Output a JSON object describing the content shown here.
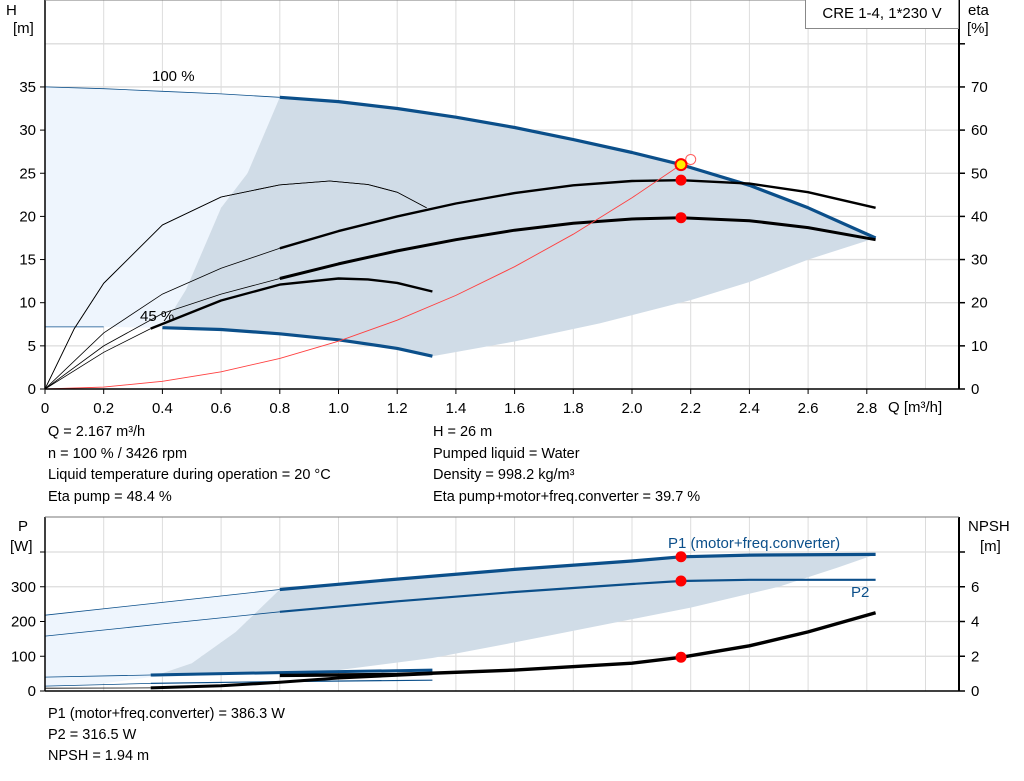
{
  "chart_data": [
    {
      "type": "line",
      "title": "CRE 1-4, 1*230 V",
      "xlabel": "Q [m³/h]",
      "ylabel": "H\n[m]",
      "ylabel_parts": [
        "H",
        "[m]"
      ],
      "y2label_parts": [
        "eta",
        "[%]"
      ],
      "xlim": [
        0,
        3.1
      ],
      "ylim": [
        0,
        40
      ],
      "y2lim": [
        0,
        80
      ],
      "grid": true,
      "x_ticks": [
        "0",
        "0.2",
        "0.4",
        "0.6",
        "0.8",
        "1.0",
        "1.2",
        "1.4",
        "1.6",
        "1.8",
        "2.0",
        "2.2",
        "2.4",
        "2.6",
        "2.8"
      ],
      "y_ticks": [
        "0",
        "5",
        "10",
        "15",
        "20",
        "25",
        "30",
        "35"
      ],
      "y2_ticks": [
        "0",
        "10",
        "20",
        "30",
        "40",
        "50",
        "60",
        "70"
      ],
      "operating_range_q": [
        0.8,
        2.83
      ],
      "series": [
        {
          "label": "100 %",
          "axis": "H",
          "color": "#0b4f8a",
          "points": [
            [
              0,
              35
            ],
            [
              0.2,
              34.8
            ],
            [
              0.4,
              34.5
            ],
            [
              0.6,
              34.2
            ],
            [
              0.8,
              33.8
            ],
            [
              1.0,
              33.3
            ],
            [
              1.2,
              32.5
            ],
            [
              1.4,
              31.5
            ],
            [
              1.6,
              30.3
            ],
            [
              1.8,
              28.9
            ],
            [
              2.0,
              27.4
            ],
            [
              2.167,
              26.0
            ],
            [
              2.4,
              23.6
            ],
            [
              2.6,
              21.0
            ],
            [
              2.83,
              17.5
            ]
          ]
        },
        {
          "label": "45 %",
          "axis": "H",
          "color": "#0b4f8a",
          "thick_from": 0.36,
          "points": [
            [
              0,
              7.2
            ],
            [
              0.2,
              7.2
            ],
            [
              0.4,
              7.1
            ],
            [
              0.6,
              6.9
            ],
            [
              0.8,
              6.4
            ],
            [
              1.0,
              5.7
            ],
            [
              1.2,
              4.7
            ],
            [
              1.32,
              3.8
            ]
          ]
        },
        {
          "axis": "eta",
          "color": "#000000",
          "width": 2.4,
          "points": [
            [
              0,
              0
            ],
            [
              0.2,
              13
            ],
            [
              0.4,
              22
            ],
            [
              0.6,
              28
            ],
            [
              0.8,
              32.6
            ],
            [
              1.0,
              36.6
            ],
            [
              1.2,
              40
            ],
            [
              1.4,
              43
            ],
            [
              1.6,
              45.4
            ],
            [
              1.8,
              47.2
            ],
            [
              2.0,
              48.2
            ],
            [
              2.167,
              48.4
            ],
            [
              2.4,
              47.6
            ],
            [
              2.6,
              45.6
            ],
            [
              2.83,
              42
            ]
          ]
        },
        {
          "axis": "eta",
          "color": "#000000",
          "width": 3,
          "points": [
            [
              0,
              0
            ],
            [
              0.2,
              10
            ],
            [
              0.4,
              17.5
            ],
            [
              0.6,
              22
            ],
            [
              0.8,
              25.6
            ],
            [
              1.0,
              29
            ],
            [
              1.2,
              32
            ],
            [
              1.4,
              34.6
            ],
            [
              1.6,
              36.8
            ],
            [
              1.8,
              38.4
            ],
            [
              2.0,
              39.4
            ],
            [
              2.167,
              39.7
            ],
            [
              2.4,
              39
            ],
            [
              2.6,
              37.4
            ],
            [
              2.83,
              34.6
            ]
          ]
        },
        {
          "axis": "eta",
          "color": "#000000",
          "width": 0.8,
          "thin_only": true,
          "points": [
            [
              0,
              0
            ],
            [
              0.1,
              14
            ],
            [
              0.2,
              24.5
            ],
            [
              0.4,
              38
            ],
            [
              0.6,
              44.5
            ],
            [
              0.8,
              47.3
            ],
            [
              0.97,
              48.2
            ],
            [
              1.1,
              47.4
            ],
            [
              1.2,
              45.6
            ],
            [
              1.3,
              42
            ]
          ]
        },
        {
          "axis": "eta",
          "color": "#000000",
          "width": 2.4,
          "thick_from": 0.36,
          "points": [
            [
              0,
              0
            ],
            [
              0.2,
              8.5
            ],
            [
              0.36,
              14
            ],
            [
              0.6,
              20.5
            ],
            [
              0.8,
              24.2
            ],
            [
              1.0,
              25.6
            ],
            [
              1.1,
              25.4
            ],
            [
              1.2,
              24.6
            ],
            [
              1.32,
              22.6
            ]
          ]
        },
        {
          "axis": "H",
          "color": "#ff4040",
          "width": 0.9,
          "system_curve": true,
          "points": [
            [
              0,
              0
            ],
            [
              0.2,
              0.22
            ],
            [
              0.4,
              0.89
            ],
            [
              0.6,
              1.99
            ],
            [
              0.8,
              3.54
            ],
            [
              1.0,
              5.54
            ],
            [
              1.2,
              7.97
            ],
            [
              1.4,
              10.85
            ],
            [
              1.6,
              14.17
            ],
            [
              1.8,
              17.94
            ],
            [
              2.0,
              22.15
            ],
            [
              2.167,
              26.0
            ],
            [
              2.2,
              26.8
            ]
          ]
        }
      ],
      "operating_points": [
        {
          "axis": "H",
          "q": 2.167,
          "value": 26,
          "fill": "#ffee00"
        },
        {
          "axis": "eta",
          "q": 2.167,
          "value": 48.4,
          "fill": "#ff0000"
        },
        {
          "axis": "eta",
          "q": 2.167,
          "value": 39.7,
          "fill": "#ff0000"
        }
      ],
      "requested_point": {
        "q": 2.2,
        "h": 26.6
      },
      "region_dark": [
        [
          0.8,
          33.8
        ],
        [
          1.0,
          33.3
        ],
        [
          1.2,
          32.5
        ],
        [
          1.4,
          31.5
        ],
        [
          1.6,
          30.3
        ],
        [
          1.8,
          28.9
        ],
        [
          2.0,
          27.4
        ],
        [
          2.167,
          26.0
        ],
        [
          2.4,
          23.6
        ],
        [
          2.6,
          21.0
        ],
        [
          2.83,
          17.5
        ],
        [
          2.6,
          15
        ],
        [
          2.4,
          12.4
        ],
        [
          2.2,
          10.3
        ],
        [
          1.89,
          7.6
        ],
        [
          1.6,
          5.5
        ],
        [
          1.32,
          3.8
        ],
        [
          1.2,
          4.7
        ],
        [
          1.0,
          5.7
        ],
        [
          0.8,
          6.4
        ],
        [
          0.6,
          6.9
        ],
        [
          0.4,
          7.1
        ],
        [
          0.48,
          11.5
        ],
        [
          0.6,
          21
        ],
        [
          0.69,
          25
        ]
      ],
      "region_light": [
        [
          0,
          35
        ],
        [
          0.2,
          34.8
        ],
        [
          0.4,
          34.5
        ],
        [
          0.6,
          34.2
        ],
        [
          0.8,
          33.8
        ],
        [
          0.69,
          25
        ],
        [
          0.6,
          21
        ],
        [
          0.48,
          11.5
        ],
        [
          0.4,
          7.1
        ],
        [
          0.2,
          7.2
        ],
        [
          0,
          7.2
        ]
      ],
      "colors": {
        "region_dark": "#d0dce7",
        "region_light": "#eef5fd",
        "grid": "#dcdcdc"
      }
    },
    {
      "type": "line",
      "ylabel_parts": [
        "P",
        "[W]"
      ],
      "y2label_parts": [
        "NPSH",
        "[m]"
      ],
      "xlim": [
        0,
        3.1
      ],
      "ylim": [
        0,
        400
      ],
      "y2lim": [
        0,
        8
      ],
      "grid": true,
      "y_ticks": [
        "0",
        "100",
        "200",
        "300"
      ],
      "y2_ticks": [
        "0",
        "2",
        "4",
        "6"
      ],
      "series": [
        {
          "name": "P1 (motor+freq.converter)",
          "axis": "P",
          "color": "#0b4f8a",
          "width": 3.2,
          "thick_from": 0.8,
          "points": [
            [
              0,
              218
            ],
            [
              0.4,
              255
            ],
            [
              0.8,
              292
            ],
            [
              1.2,
              322
            ],
            [
              1.6,
              350
            ],
            [
              2.0,
              374
            ],
            [
              2.167,
              386.3
            ],
            [
              2.4,
              391
            ],
            [
              2.83,
              393
            ]
          ]
        },
        {
          "name": "P2",
          "axis": "P",
          "color": "#0b4f8a",
          "width": 2.2,
          "thick_from": 0.8,
          "points": [
            [
              0,
              158
            ],
            [
              0.4,
              193
            ],
            [
              0.8,
              228
            ],
            [
              1.2,
              258
            ],
            [
              1.6,
              285
            ],
            [
              2.0,
              308
            ],
            [
              2.167,
              316.5
            ],
            [
              2.4,
              320
            ],
            [
              2.83,
              320
            ]
          ]
        },
        {
          "axis": "P",
          "color": "#0b4f8a",
          "width": 3,
          "thick_from": 0.36,
          "points": [
            [
              0,
              40
            ],
            [
              0.36,
              46
            ],
            [
              0.8,
              53
            ],
            [
              1.32,
              60
            ]
          ]
        },
        {
          "axis": "P",
          "color": "#0b4f8a",
          "width": 1.2,
          "thick_from": 0.36,
          "points": [
            [
              0,
              14
            ],
            [
              0.36,
              22
            ],
            [
              0.8,
              27
            ],
            [
              1.32,
              31
            ]
          ]
        },
        {
          "axis": "NPSH",
          "color": "#000000",
          "width": 3,
          "thick_from": 0.36,
          "points": [
            [
              0,
              0.16
            ],
            [
              0.36,
              0.18
            ],
            [
              0.6,
              0.3
            ],
            [
              0.8,
              0.5
            ],
            [
              1.0,
              0.75
            ],
            [
              1.32,
              1.0
            ]
          ]
        },
        {
          "axis": "NPSH",
          "color": "#000000",
          "width": 3.4,
          "thick_from": 0.8,
          "points": [
            [
              0.8,
              0.9
            ],
            [
              1.2,
              0.95
            ],
            [
              1.6,
              1.2
            ],
            [
              2.0,
              1.6
            ],
            [
              2.167,
              1.94
            ],
            [
              2.4,
              2.6
            ],
            [
              2.6,
              3.4
            ],
            [
              2.83,
              4.5
            ]
          ]
        }
      ],
      "operating_points": [
        {
          "axis": "P",
          "q": 2.167,
          "value": 386.3,
          "fill": "#ff0000"
        },
        {
          "axis": "P",
          "q": 2.167,
          "value": 316.5,
          "fill": "#ff0000"
        },
        {
          "axis": "NPSH",
          "q": 2.167,
          "value": 1.94,
          "fill": "#ff0000"
        }
      ],
      "region_dark": [
        [
          0.8,
          292
        ],
        [
          1.2,
          322
        ],
        [
          1.6,
          350
        ],
        [
          2.0,
          374
        ],
        [
          2.167,
          386.3
        ],
        [
          2.4,
          391
        ],
        [
          2.83,
          393
        ],
        [
          2.7,
          355
        ],
        [
          2.5,
          300
        ],
        [
          2.2,
          240
        ],
        [
          1.9,
          190
        ],
        [
          1.6,
          140
        ],
        [
          1.32,
          95
        ],
        [
          1.0,
          60
        ],
        [
          0.8,
          53
        ],
        [
          0.36,
          40
        ],
        [
          0.5,
          80
        ],
        [
          0.65,
          170
        ]
      ],
      "region_light": [
        [
          0,
          218
        ],
        [
          0.4,
          255
        ],
        [
          0.8,
          292
        ],
        [
          0.65,
          170
        ],
        [
          0.5,
          80
        ],
        [
          0.36,
          40
        ],
        [
          0.2,
          22
        ],
        [
          0,
          14
        ]
      ],
      "colors": {
        "region_dark": "#d0dce7",
        "region_light": "#eef5fd",
        "grid": "#dcdcdc"
      }
    }
  ],
  "results": {
    "q": "Q = 2.167 m³/h",
    "n": "n = 100 % / 3426 rpm",
    "liquid_temp": "Liquid temperature during operation = 20 °C",
    "eta_pump": "Eta pump = 48.4 %",
    "h": "H = 26 m",
    "liquid": "Pumped liquid = Water",
    "density": "Density = 998.2 kg/m³",
    "eta_total": "Eta pump+motor+freq.converter = 39.7 %",
    "p1": "P1 (motor+freq.converter) = 386.3 W",
    "p2": "P2 = 316.5 W",
    "npsh": "NPSH = 1.94 m"
  }
}
